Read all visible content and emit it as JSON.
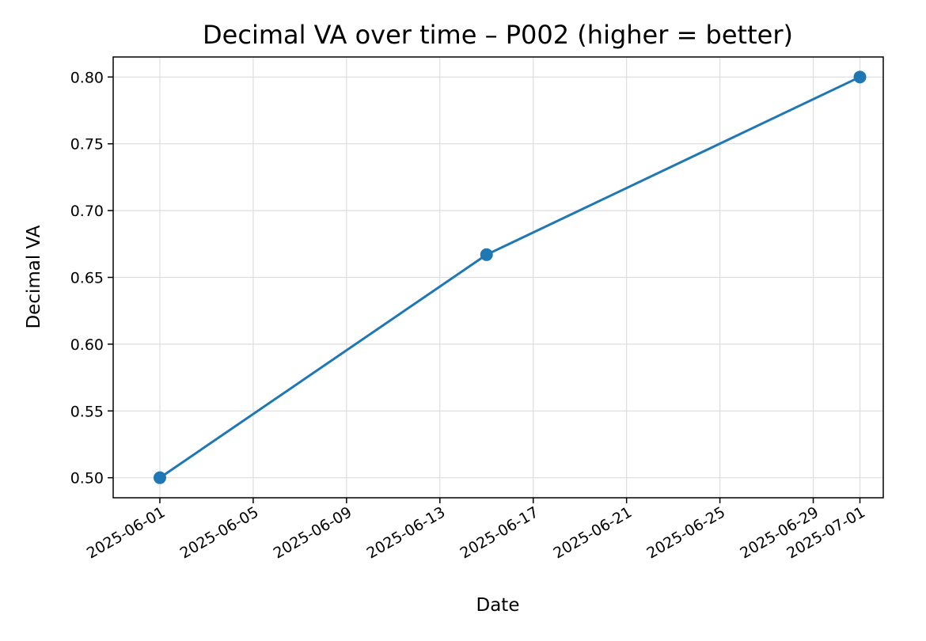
{
  "chart_data": {
    "type": "line",
    "title": "Decimal VA over time – P002 (higher = better)",
    "xlabel": "Date",
    "ylabel": "Decimal VA",
    "x_ticks": [
      "2025-06-01",
      "2025-06-05",
      "2025-06-09",
      "2025-06-13",
      "2025-06-17",
      "2025-06-21",
      "2025-06-25",
      "2025-06-29",
      "2025-07-01"
    ],
    "y_ticks": [
      "0.50",
      "0.55",
      "0.60",
      "0.65",
      "0.70",
      "0.75",
      "0.80"
    ],
    "xlim": [
      "2025-05-30",
      "2025-07-02"
    ],
    "ylim": [
      0.485,
      0.815
    ],
    "grid": true,
    "series": [
      {
        "x": [
          "2025-06-01",
          "2025-06-15",
          "2025-07-01"
        ],
        "y": [
          0.5,
          0.667,
          0.8
        ],
        "color": "#1f77b4"
      }
    ]
  }
}
